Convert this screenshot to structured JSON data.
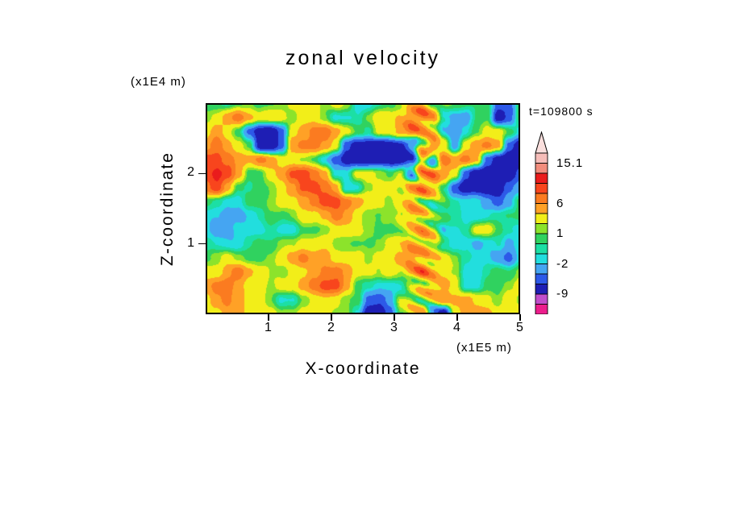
{
  "page": {
    "background": "#ffffff"
  },
  "chart_data": {
    "type": "heatmap",
    "title": "zonal velocity",
    "xlabel": "X-coordinate",
    "ylabel": "Z-coordinate",
    "x_unit_label": "(x1E5 m)",
    "y_unit_label": "(x1E4 m)",
    "time_annotation": "t=109800 s",
    "xlim": [
      0,
      5
    ],
    "zlim": [
      0,
      3
    ],
    "xticks": [
      "1",
      "2",
      "3",
      "4",
      "5"
    ],
    "yticks": [
      "1",
      "2"
    ],
    "legend_position": "right-colorbar",
    "grid_lines": false,
    "colorbar": {
      "levels": [
        -12,
        -9,
        -6,
        -4,
        -2,
        -1,
        0,
        1,
        2,
        4,
        6,
        8,
        10,
        12,
        15.1
      ],
      "colors_bottom_to_top": [
        "#ec1e8c",
        "#c14ecb",
        "#1e1eb4",
        "#2d59e8",
        "#45a5f2",
        "#22dede",
        "#1cdfa4",
        "#30d25f",
        "#8ce32b",
        "#f2ee19",
        "#ffa126",
        "#fb7b20",
        "#f8451d",
        "#ea1c1c",
        "#f28d7d",
        "#f6bdb9"
      ],
      "tip_color": "#fadfdd",
      "labels": [
        {
          "text": "15.1",
          "level": 15.1
        },
        {
          "text": "6",
          "level": 6
        },
        {
          "text": "1",
          "level": 1
        },
        {
          "text": "-2",
          "level": -2
        },
        {
          "text": "-9",
          "level": -9
        }
      ]
    },
    "render_hints": {
      "shear_x": 3.45,
      "shear_width": 0.2,
      "shear_amp": 3.0,
      "shear_kz": 3.5,
      "shear_kx": 1.2,
      "ripple_amp": 0.45,
      "ripple_kx": 1.7,
      "ripple_kz": 1.3
    },
    "grid": {
      "nx": 30,
      "nz": 16,
      "x_range_1e5_m": [
        0,
        5
      ],
      "z_range_1e4_m": [
        0,
        3
      ],
      "values_top_to_bottom": [
        [
          0.5,
          0.5,
          -0.6,
          0.5,
          1.5,
          0.5,
          0.5,
          1.5,
          3,
          3,
          3,
          1.5,
          3,
          1.5,
          -1.5,
          -1.5,
          -0.6,
          0.5,
          1.5,
          3,
          5,
          3,
          1.5,
          0.5,
          0.5,
          0.5,
          0.5,
          -5,
          -5,
          0.5
        ],
        [
          1.5,
          3,
          5,
          7,
          5,
          3,
          3,
          3,
          1.5,
          3,
          3,
          1.5,
          -1.5,
          -1.5,
          -0.6,
          1.5,
          3,
          3,
          5,
          7,
          7,
          5,
          -1.5,
          -3,
          -3,
          0.5,
          0.5,
          -8,
          -5,
          0.5
        ],
        [
          3,
          5,
          3,
          0.5,
          -5,
          -8,
          -8,
          -5,
          3,
          5,
          7,
          7,
          5,
          3,
          0.5,
          -0.6,
          3,
          3,
          5,
          7,
          5,
          3,
          -1.5,
          -3,
          -1.5,
          0.5,
          3,
          3,
          0.5,
          -1.5
        ],
        [
          5,
          7,
          5,
          3,
          0.5,
          -8,
          -8,
          -5,
          5,
          7,
          7,
          5,
          3,
          -5,
          -8,
          -8,
          -8,
          -8,
          -8,
          -5,
          3,
          7,
          3,
          -3,
          3,
          5,
          7,
          5,
          -5,
          -8
        ],
        [
          9,
          9,
          7,
          5,
          5,
          7,
          5,
          3,
          3,
          1.5,
          0.5,
          -1.5,
          -5,
          -8,
          -8,
          -8,
          -8,
          -8,
          -8,
          -5,
          5,
          -3,
          7,
          5,
          7,
          5,
          -5,
          -8,
          -8,
          -8
        ],
        [
          9,
          11,
          9,
          5,
          0.5,
          0.5,
          3,
          5,
          9,
          9,
          7,
          5,
          -1.5,
          -1.5,
          3,
          3,
          1.5,
          0.5,
          3,
          -3,
          5,
          7,
          5,
          3,
          -5,
          -8,
          -8,
          -8,
          -8,
          -5
        ],
        [
          7,
          9,
          5,
          0.5,
          -0.6,
          0.5,
          1.5,
          3,
          5,
          9,
          9,
          7,
          5,
          -1.5,
          -1.5,
          1.5,
          3,
          3,
          1.5,
          5,
          7,
          5,
          0.5,
          -5,
          -8,
          -8,
          -8,
          -8,
          -5,
          -3
        ],
        [
          0.5,
          -0.6,
          -1.5,
          -1.5,
          0.5,
          0.5,
          1.5,
          3,
          3,
          5,
          7,
          9,
          9,
          7,
          5,
          3,
          3,
          1.5,
          3,
          5,
          3,
          0.5,
          0.5,
          -0.6,
          -1.5,
          -1.5,
          -3,
          -5,
          -3,
          0.5
        ],
        [
          -1.5,
          -1.5,
          -3,
          -3,
          -1.5,
          -0.6,
          0.5,
          0.5,
          1.5,
          3,
          3,
          5,
          7,
          5,
          3,
          1.5,
          0.5,
          1.5,
          3,
          5,
          3,
          0.5,
          0.5,
          -0.6,
          -1.5,
          -1.5,
          -1.5,
          -0.6,
          0.5,
          0.5
        ],
        [
          -1.5,
          -3,
          -3,
          -1.5,
          -1.5,
          -1.5,
          -0.6,
          -1.5,
          -1.5,
          0.5,
          0.5,
          1.5,
          3,
          3,
          3,
          1.5,
          0.5,
          0.5,
          1.5,
          3,
          5,
          3,
          -1.5,
          -1.5,
          -0.6,
          3,
          3,
          0.5,
          -0.6,
          -1.5
        ],
        [
          -0.6,
          -1.5,
          -1.5,
          -1.5,
          -0.6,
          0.5,
          0.5,
          1.5,
          1.5,
          3,
          3,
          3,
          1.5,
          1.5,
          0.5,
          0.5,
          1.5,
          3,
          3,
          5,
          5,
          3,
          -0.6,
          -1.5,
          -1.5,
          -3,
          -1.5,
          -0.6,
          -3,
          -1.5
        ],
        [
          0.5,
          1.5,
          3,
          1.5,
          0.5,
          0.5,
          1.5,
          3,
          5,
          7,
          5,
          5,
          3,
          3,
          3,
          1.5,
          3,
          3,
          5,
          7,
          5,
          3,
          3,
          1.5,
          -0.6,
          -1.5,
          -1.5,
          -3,
          -5,
          -1.5
        ],
        [
          3,
          3,
          5,
          7,
          5,
          3,
          1.5,
          1.5,
          3,
          3,
          5,
          7,
          7,
          5,
          3,
          3,
          1.5,
          3,
          3,
          5,
          7,
          5,
          3,
          1.5,
          -1.5,
          -1.5,
          -0.6,
          0.5,
          0.5,
          1.5
        ],
        [
          5,
          7,
          7,
          5,
          3,
          3,
          1.5,
          3,
          3,
          5,
          7,
          9,
          9,
          5,
          0.5,
          -0.6,
          -1.5,
          -1.5,
          -1.5,
          0.5,
          3,
          5,
          5,
          3,
          -1.5,
          -1.5,
          0.5,
          0.5,
          1.5,
          3
        ],
        [
          3,
          5,
          7,
          5,
          3,
          3,
          1.5,
          -1.5,
          -1.5,
          1.5,
          3,
          3,
          3,
          1.5,
          0.5,
          -5,
          -5,
          -3,
          1.5,
          3,
          3,
          3,
          5,
          5,
          5,
          3,
          3,
          1.5,
          3,
          1.5
        ],
        [
          3,
          3,
          5,
          5,
          3,
          3,
          3,
          1.5,
          1.5,
          3,
          3,
          3,
          1.5,
          1.5,
          -1.5,
          -8,
          -8,
          -5,
          1.5,
          3,
          3,
          -5,
          -8,
          3,
          5,
          5,
          5,
          3,
          3,
          3
        ]
      ]
    }
  }
}
